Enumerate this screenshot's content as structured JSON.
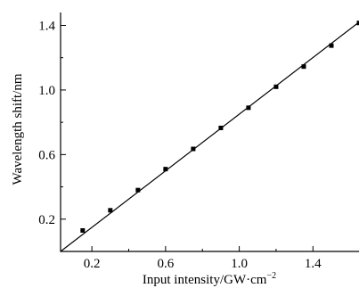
{
  "chart_data": {
    "type": "scatter",
    "title": "",
    "xlabel": "Input intensity/GW·cm",
    "xlabel_sup": "−2",
    "ylabel": "Wavelength shift/nm",
    "xlim": [
      0.03,
      1.65
    ],
    "ylim": [
      0.0,
      1.48
    ],
    "xticks": [
      0.2,
      0.6,
      1.0,
      1.4
    ],
    "xtick_labels": [
      "0.2",
      "0.6",
      "1.0",
      "1.4"
    ],
    "xminor": [
      0.4,
      0.8,
      1.2
    ],
    "yticks": [
      0.2,
      0.6,
      1.0,
      1.4
    ],
    "ytick_labels": [
      "0.2",
      "0.6",
      "1.0",
      "1.4"
    ],
    "yminor": [
      0.4,
      0.8,
      1.2
    ],
    "grid": false,
    "series": [
      {
        "marker": "square",
        "x": [
          0.15,
          0.3,
          0.45,
          0.6,
          0.75,
          0.9,
          1.05,
          1.2,
          1.35,
          1.5,
          1.65
        ],
        "y": [
          0.13,
          0.255,
          0.38,
          0.51,
          0.635,
          0.765,
          0.89,
          1.02,
          1.145,
          1.275,
          1.415
        ]
      }
    ],
    "fit_line": {
      "x": [
        0.03,
        1.65
      ],
      "y": [
        0.0,
        1.42
      ]
    }
  }
}
